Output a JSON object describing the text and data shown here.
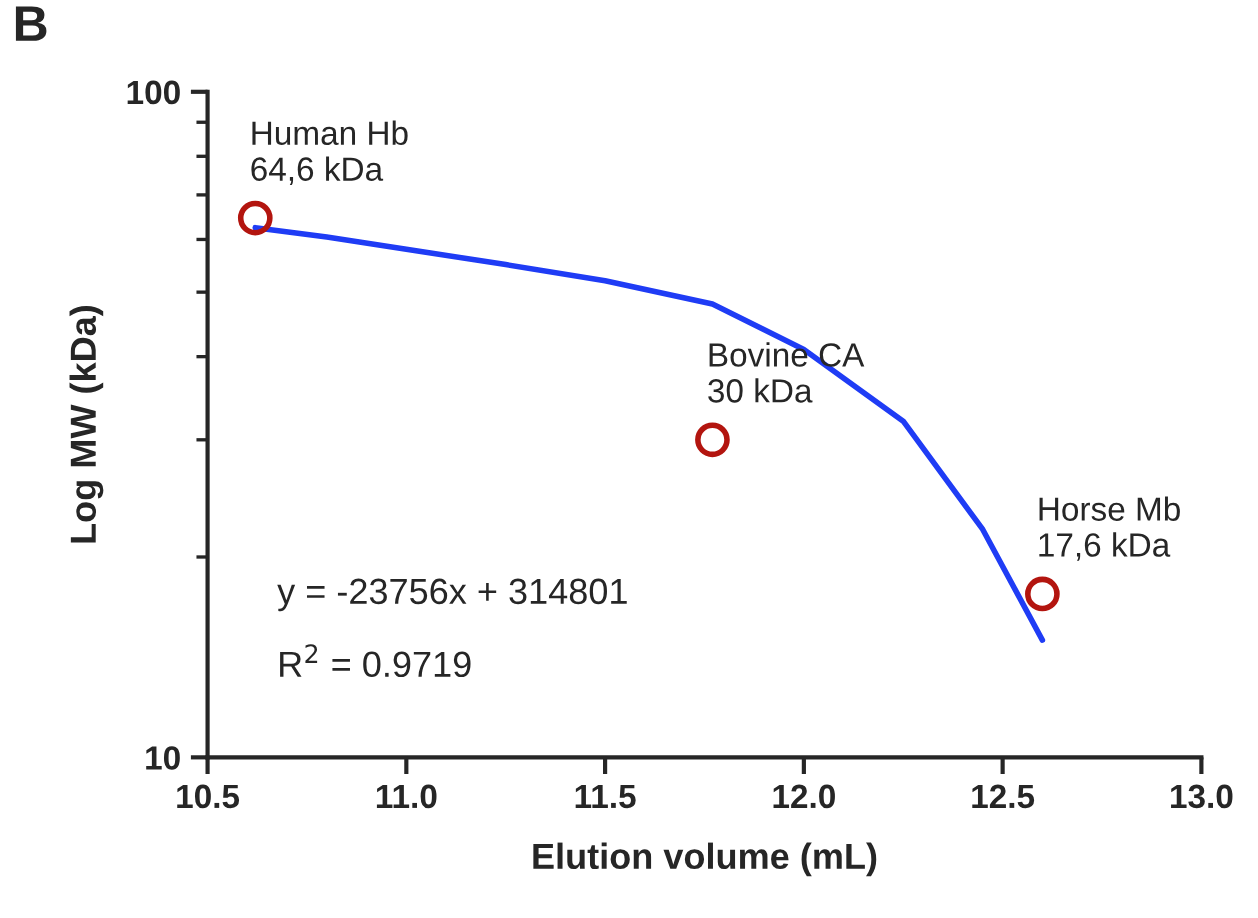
{
  "chart_data": {
    "type": "scatter",
    "xlabel": "Elution volume (mL)",
    "ylabel": "Log MW (kDa)",
    "log": "y",
    "xlim": [
      10.5,
      13.0
    ],
    "xticks": [
      {
        "value": 10.5,
        "label": "10.5"
      },
      {
        "value": 11.0,
        "label": "11.0"
      },
      {
        "value": 11.5,
        "label": "11.5"
      },
      {
        "value": 12.0,
        "label": "12.0"
      },
      {
        "value": 12.5,
        "label": "12.5"
      },
      {
        "value": 13.0,
        "label": "13.0"
      }
    ],
    "ylim": [
      10,
      100
    ],
    "yticks": [
      10,
      100
    ],
    "grid": false,
    "legend": false,
    "series": [
      {
        "marker": "circle",
        "color": "#b3150f",
        "x": [
          10.62,
          11.77,
          12.6
        ],
        "values": [
          64.6,
          30,
          17.6
        ]
      },
      {
        "type": "line",
        "marker": "none",
        "color": "#1f3cf5",
        "x": [
          10.62,
          10.8,
          11.0,
          11.25,
          11.5,
          11.77,
          12.0,
          12.25,
          12.45,
          12.6
        ],
        "values": [
          62.5,
          60.5,
          58,
          55,
          52,
          48,
          41,
          32,
          22,
          15
        ]
      }
    ],
    "annotations": [
      "B",
      "y = -23756x + 314801",
      "R$^{2}$ = 0.9719",
      {
        "text": "Human Hb\n64,6 kDa",
        "x": 10.62,
        "y": 64.6
      },
      {
        "text": "Bovine CA\n30 kDa",
        "x": 11.77,
        "y": 30
      },
      {
        "text": "Horse Mb\n17,6 kDa",
        "x": 12.6,
        "y": 17.6
      }
    ]
  }
}
